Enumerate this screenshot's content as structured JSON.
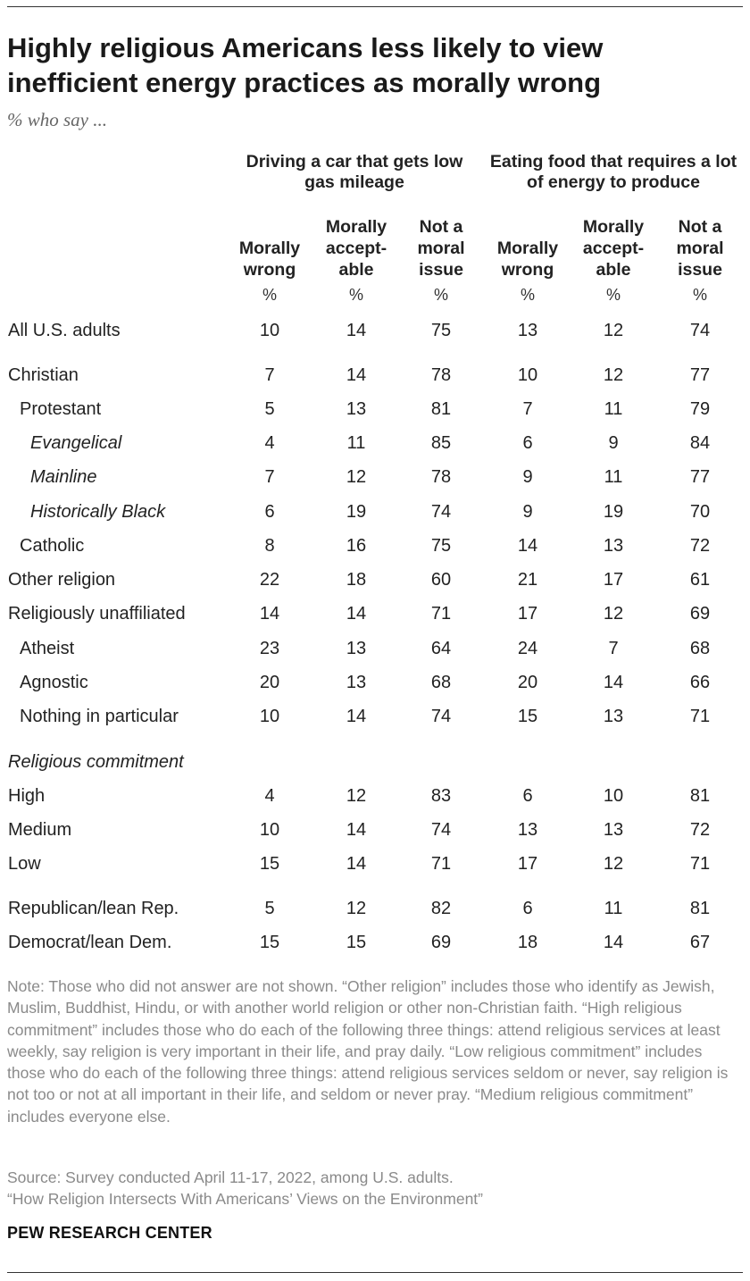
{
  "title": "Highly religious Americans less likely to view inefficient energy practices as morally wrong",
  "subtitle": "% who say ...",
  "chart_data": {
    "type": "table",
    "groups": [
      {
        "name": "Driving a car that gets low gas mileage"
      },
      {
        "name": "Eating food that requires a lot of energy to produce"
      }
    ],
    "columns": [
      "Morally wrong",
      "Morally accept-able",
      "Not a moral issue",
      "Morally wrong",
      "Morally accept-able",
      "Not a moral issue"
    ],
    "unit": "%",
    "section_labels": {
      "commitment": "Religious commitment"
    },
    "rows": [
      {
        "label": "All U.S. adults",
        "indent": 0,
        "values": [
          10,
          14,
          75,
          13,
          12,
          74
        ]
      },
      {
        "label": "Christian",
        "indent": 0,
        "values": [
          7,
          14,
          78,
          10,
          12,
          77
        ]
      },
      {
        "label": "Protestant",
        "indent": 1,
        "values": [
          5,
          13,
          81,
          7,
          11,
          79
        ]
      },
      {
        "label": "Evangelical",
        "indent": 2,
        "values": [
          4,
          11,
          85,
          6,
          9,
          84
        ]
      },
      {
        "label": "Mainline",
        "indent": 2,
        "values": [
          7,
          12,
          78,
          9,
          11,
          77
        ]
      },
      {
        "label": "Historically Black",
        "indent": 2,
        "values": [
          6,
          19,
          74,
          9,
          19,
          70
        ]
      },
      {
        "label": "Catholic",
        "indent": 1,
        "values": [
          8,
          16,
          75,
          14,
          13,
          72
        ]
      },
      {
        "label": "Other religion",
        "indent": 0,
        "values": [
          22,
          18,
          60,
          21,
          17,
          61
        ]
      },
      {
        "label": "Religiously unaffiliated",
        "indent": 0,
        "values": [
          14,
          14,
          71,
          17,
          12,
          69
        ]
      },
      {
        "label": "Atheist",
        "indent": 1,
        "values": [
          23,
          13,
          64,
          24,
          7,
          68
        ]
      },
      {
        "label": "Agnostic",
        "indent": 1,
        "values": [
          20,
          13,
          68,
          20,
          14,
          66
        ]
      },
      {
        "label": "Nothing in particular",
        "indent": 1,
        "values": [
          10,
          14,
          74,
          15,
          13,
          71
        ]
      },
      {
        "label": "High",
        "indent": 0,
        "values": [
          4,
          12,
          83,
          6,
          10,
          81
        ]
      },
      {
        "label": "Medium",
        "indent": 0,
        "values": [
          10,
          14,
          74,
          13,
          13,
          72
        ]
      },
      {
        "label": "Low",
        "indent": 0,
        "values": [
          15,
          14,
          71,
          17,
          12,
          71
        ]
      },
      {
        "label": "Republican/lean Rep.",
        "indent": 0,
        "values": [
          5,
          12,
          82,
          6,
          11,
          81
        ]
      },
      {
        "label": "Democrat/lean Dem.",
        "indent": 0,
        "values": [
          15,
          15,
          69,
          18,
          14,
          67
        ]
      }
    ]
  },
  "note": "Note: Those who did not answer are not shown. “Other religion” includes those who identify as Jewish, Muslim, Buddhist, Hindu, or with another world religion or other non-Christian faith. “High religious commitment” includes those who do each of the following three things: attend religious services at least weekly, say religion is very important in their life, and pray daily. “Low religious commitment” includes those who do each of the following three things: attend religious services seldom or never, say religion is not too or not at all important in their life, and seldom or never pray. “Medium religious commitment” includes everyone else.",
  "source": "Source: Survey conducted April 11-17, 2022, among U.S. adults.",
  "report": "“How Religion Intersects With Americans’ Views on the Environment”",
  "brand": "PEW RESEARCH CENTER"
}
